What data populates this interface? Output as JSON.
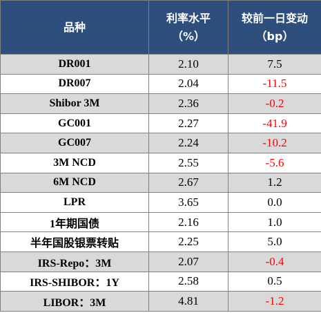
{
  "table": {
    "header": [
      [
        "品种"
      ],
      [
        "利率水平",
        "（%）"
      ],
      [
        "较前一日变动",
        "（bp）"
      ]
    ],
    "rows": [
      [
        "DR001",
        "2.10",
        "7.5"
      ],
      [
        "DR007",
        "2.04",
        "-11.5"
      ],
      [
        "Shibor 3M",
        "2.36",
        "-0.2"
      ],
      [
        "GC001",
        "2.27",
        "-41.9"
      ],
      [
        "GC007",
        "2.24",
        "-10.2"
      ],
      [
        "3M NCD",
        "2.55",
        "-5.6"
      ],
      [
        "6M NCD",
        "2.67",
        "1.2"
      ],
      [
        "LPR",
        "3.65",
        "0.0"
      ],
      [
        "1年期国债",
        "2.16",
        "1.0"
      ],
      [
        "半年国股银票转贴",
        "2.25",
        "5.0"
      ],
      [
        "IRS-Repo：3M",
        "2.07",
        "-0.4"
      ],
      [
        "IRS-SHIBOR：1Y",
        "2.58",
        "0.5"
      ],
      [
        "LIBOR：3M",
        "4.81",
        "-1.2"
      ]
    ]
  }
}
